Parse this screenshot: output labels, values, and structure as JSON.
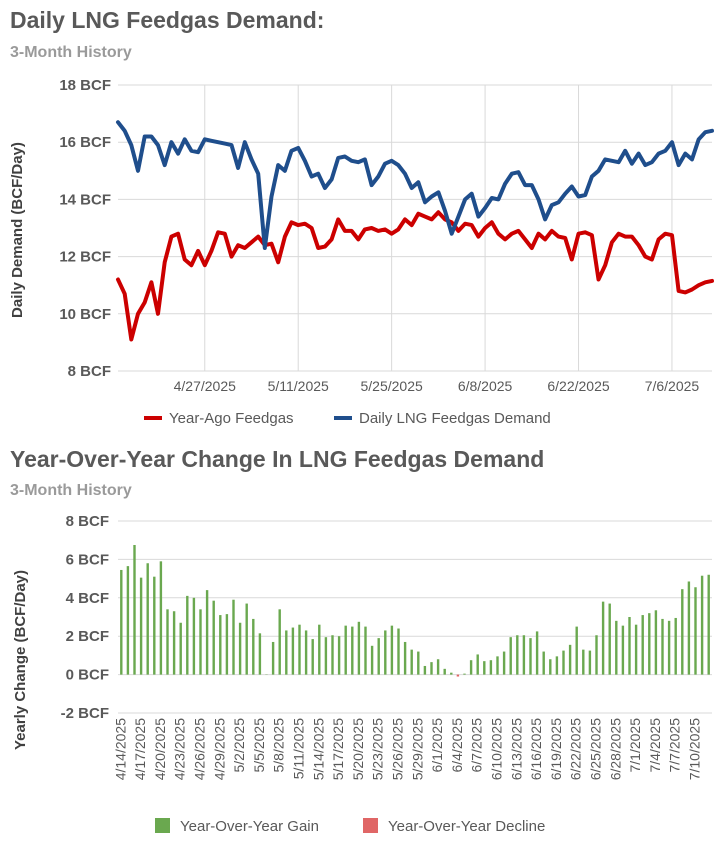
{
  "chart_data": [
    {
      "type": "line",
      "title": "Daily LNG Feedgas Demand:",
      "subtitle": "3-Month History",
      "ylabel": "Daily Demand (BCF/Day)",
      "ylim": [
        8,
        18
      ],
      "yticks": [
        "8 BCF",
        "10 BCF",
        "12 BCF",
        "14 BCF",
        "16 BCF",
        "18 BCF"
      ],
      "xlim": [
        0,
        89
      ],
      "xticks": [
        {
          "i": 13,
          "label": "4/27/2025"
        },
        {
          "i": 27,
          "label": "5/11/2025"
        },
        {
          "i": 41,
          "label": "5/25/2025"
        },
        {
          "i": 55,
          "label": "6/8/2025"
        },
        {
          "i": 69,
          "label": "6/22/2025"
        },
        {
          "i": 83,
          "label": "7/6/2025"
        }
      ],
      "series": [
        {
          "name": "Year-Ago Feedgas",
          "color": "#cc0000",
          "values": [
            11.2,
            10.7,
            9.1,
            10.0,
            10.4,
            11.1,
            10.0,
            11.8,
            12.7,
            12.8,
            11.9,
            11.7,
            12.2,
            11.7,
            12.2,
            12.85,
            12.8,
            12.0,
            12.4,
            12.3,
            12.5,
            12.7,
            12.4,
            12.45,
            11.8,
            12.7,
            13.2,
            13.1,
            13.15,
            13.0,
            12.3,
            12.35,
            12.6,
            13.3,
            12.9,
            12.9,
            12.6,
            12.95,
            13.0,
            12.9,
            12.95,
            12.8,
            12.95,
            13.3,
            13.1,
            13.5,
            13.4,
            13.3,
            13.55,
            13.3,
            13.2,
            12.9,
            13.15,
            13.1,
            12.7,
            13.0,
            13.2,
            12.8,
            12.6,
            12.8,
            12.9,
            12.6,
            12.3,
            12.8,
            12.6,
            12.9,
            12.7,
            12.65,
            11.9,
            12.8,
            12.85,
            12.75,
            11.2,
            11.7,
            12.5,
            12.8,
            12.7,
            12.7,
            12.4,
            12.0,
            11.9,
            12.6,
            12.8,
            12.75,
            10.8,
            10.75,
            10.85,
            11.0,
            11.1,
            11.15
          ]
        },
        {
          "name": "Daily LNG Feedgas Demand",
          "color": "#1f4e8c",
          "values": [
            16.7,
            16.4,
            15.9,
            15.0,
            16.2,
            16.2,
            15.9,
            15.2,
            16.0,
            15.6,
            16.1,
            15.7,
            15.65,
            16.1,
            16.05,
            16.0,
            15.95,
            15.9,
            15.1,
            16.0,
            15.4,
            14.9,
            12.3,
            14.1,
            15.2,
            15.0,
            15.7,
            15.8,
            15.35,
            14.8,
            14.9,
            14.4,
            14.7,
            15.45,
            15.5,
            15.35,
            15.3,
            15.4,
            14.5,
            14.8,
            15.25,
            15.35,
            15.2,
            14.9,
            14.4,
            14.6,
            13.9,
            14.1,
            14.25,
            13.6,
            12.8,
            13.4,
            14.0,
            14.2,
            13.4,
            13.7,
            14.05,
            14.0,
            14.55,
            14.9,
            14.95,
            14.5,
            14.5,
            14.0,
            13.3,
            13.8,
            13.9,
            14.2,
            14.45,
            14.1,
            14.15,
            14.8,
            15.0,
            15.4,
            15.35,
            15.3,
            15.7,
            15.25,
            15.6,
            15.2,
            15.3,
            15.6,
            15.7,
            16.0,
            15.2,
            15.6,
            15.4,
            16.1,
            16.35,
            16.4
          ]
        }
      ],
      "legend": "bottom"
    },
    {
      "type": "bar",
      "title": "Year-Over-Year Change In LNG Feedgas Demand",
      "subtitle": "3-Month History",
      "ylabel": "Yearly Change (BCF/Day)",
      "ylim": [
        -2,
        8
      ],
      "yticks": [
        "-2 BCF",
        "0 BCF",
        "2 BCF",
        "4 BCF",
        "6 BCF",
        "8 BCF"
      ],
      "dates": [
        "4/14/2025",
        "4/15/2025",
        "4/16/2025",
        "4/17/2025",
        "4/18/2025",
        "4/19/2025",
        "4/20/2025",
        "4/21/2025",
        "4/22/2025",
        "4/23/2025",
        "4/24/2025",
        "4/25/2025",
        "4/26/2025",
        "4/27/2025",
        "4/28/2025",
        "4/29/2025",
        "4/30/2025",
        "5/1/2025",
        "5/2/2025",
        "5/3/2025",
        "5/4/2025",
        "5/5/2025",
        "5/6/2025",
        "5/7/2025",
        "5/8/2025",
        "5/9/2025",
        "5/10/2025",
        "5/11/2025",
        "5/12/2025",
        "5/13/2025",
        "5/14/2025",
        "5/15/2025",
        "5/16/2025",
        "5/17/2025",
        "5/18/2025",
        "5/19/2025",
        "5/20/2025",
        "5/21/2025",
        "5/22/2025",
        "5/23/2025",
        "5/24/2025",
        "5/25/2025",
        "5/26/2025",
        "5/27/2025",
        "5/28/2025",
        "5/29/2025",
        "5/30/2025",
        "5/31/2025",
        "6/1/2025",
        "6/2/2025",
        "6/3/2025",
        "6/4/2025",
        "6/5/2025",
        "6/6/2025",
        "6/7/2025",
        "6/8/2025",
        "6/9/2025",
        "6/10/2025",
        "6/11/2025",
        "6/12/2025",
        "6/13/2025",
        "6/14/2025",
        "6/15/2025",
        "6/16/2025",
        "6/17/2025",
        "6/18/2025",
        "6/19/2025",
        "6/20/2025",
        "6/21/2025",
        "6/22/2025",
        "6/23/2025",
        "6/24/2025",
        "6/25/2025",
        "6/26/2025",
        "6/27/2025",
        "6/28/2025",
        "6/29/2025",
        "6/30/2025",
        "7/1/2025",
        "7/2/2025",
        "7/3/2025",
        "7/4/2025",
        "7/5/2025",
        "7/6/2025",
        "7/7/2025",
        "7/8/2025",
        "7/9/2025",
        "7/10/2025",
        "7/11/2025",
        "7/12/2025"
      ],
      "tick_labels": [
        "4/14/2025",
        "4/17/2025",
        "4/20/2025",
        "4/23/2025",
        "4/26/2025",
        "4/29/2025",
        "5/2/2025",
        "5/5/2025",
        "5/8/2025",
        "5/11/2025",
        "5/14/2025",
        "5/17/2025",
        "5/20/2025",
        "5/23/2025",
        "5/26/2025",
        "5/29/2025",
        "6/1/2025",
        "6/4/2025",
        "6/7/2025",
        "6/10/2025",
        "6/13/2025",
        "6/16/2025",
        "6/19/2025",
        "6/22/2025",
        "6/25/2025",
        "6/28/2025",
        "7/1/2025",
        "7/4/2025",
        "7/7/2025",
        "7/10/2025"
      ],
      "tick_every": 3,
      "values": [
        5.45,
        5.65,
        6.75,
        5.05,
        5.8,
        5.1,
        5.9,
        3.4,
        3.3,
        2.7,
        4.1,
        4.0,
        3.4,
        4.4,
        3.85,
        3.1,
        3.15,
        3.9,
        2.7,
        3.7,
        2.9,
        2.15,
        0.0,
        1.7,
        3.4,
        2.3,
        2.45,
        2.6,
        2.3,
        1.85,
        2.6,
        1.95,
        2.05,
        2.0,
        2.55,
        2.5,
        2.75,
        2.5,
        1.5,
        1.9,
        2.3,
        2.55,
        2.4,
        1.7,
        1.3,
        1.2,
        0.45,
        0.65,
        0.8,
        0.3,
        0.1,
        -0.1,
        0.05,
        0.75,
        1.05,
        0.7,
        0.75,
        0.95,
        1.2,
        1.95,
        2.05,
        2.05,
        1.9,
        2.25,
        1.2,
        0.8,
        0.95,
        1.25,
        1.55,
        2.5,
        1.3,
        1.25,
        2.05,
        3.8,
        3.7,
        2.8,
        2.55,
        3.0,
        2.6,
        3.1,
        3.2,
        3.35,
        2.9,
        2.8,
        2.95,
        4.45,
        4.85,
        4.55,
        5.15,
        5.2
      ]
    }
  ],
  "legend1": [
    {
      "label": "Year-Ago Feedgas",
      "color": "#cc0000"
    },
    {
      "label": "Daily LNG Feedgas Demand",
      "color": "#1f4e8c"
    }
  ],
  "legend2": [
    {
      "label": "Year-Over-Year Gain",
      "color": "#6aa84f"
    },
    {
      "label": "Year-Over-Year Decline",
      "color": "#e06666"
    }
  ]
}
